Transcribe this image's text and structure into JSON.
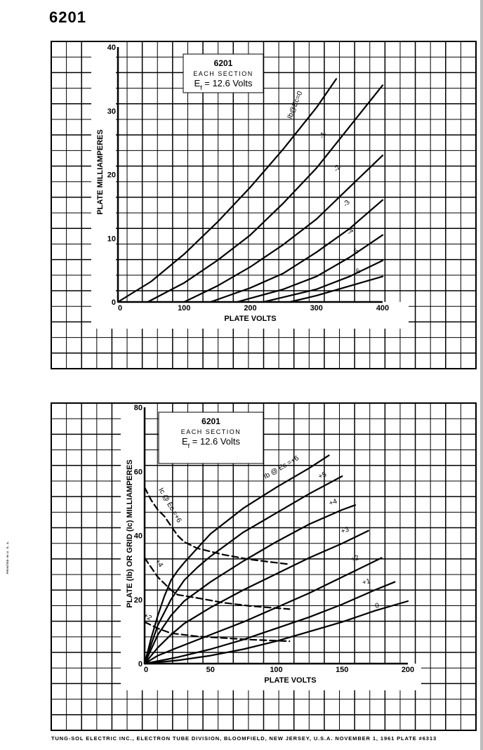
{
  "page_title": "6201",
  "side_note": "PRINTED IN U. S. A.",
  "footer": "TUNG-SOL ELECTRIC INC.,   ELECTRON TUBE DIVISION,   BLOOMFIELD, NEW JERSEY, U.S.A. NOVEMBER 1, 1961  PLATE #6313",
  "chart_data": [
    {
      "type": "line",
      "title": "6201",
      "subtitle": "EACH SECTION",
      "note": "Ef = 12.6 Volts",
      "xlabel": "PLATE VOLTS",
      "ylabel": "PLATE MILLIAMPERES",
      "xlim": [
        0,
        400
      ],
      "ylim": [
        0,
        40
      ],
      "x_ticks": [
        "0",
        "100",
        "200",
        "300",
        "400"
      ],
      "y_ticks": [
        "0",
        "10",
        "20",
        "30",
        "40"
      ],
      "series": [
        {
          "name": "Ib@Ec=0",
          "points": [
            [
              0,
              0
            ],
            [
              50,
              3.2
            ],
            [
              100,
              7.5
            ],
            [
              150,
              12.5
            ],
            [
              200,
              18
            ],
            [
              250,
              24
            ],
            [
              300,
              30.5
            ],
            [
              330,
              35
            ]
          ]
        },
        {
          "name": "-1",
          "points": [
            [
              45,
              0
            ],
            [
              100,
              3
            ],
            [
              150,
              6.5
            ],
            [
              200,
              10.5
            ],
            [
              250,
              15.5
            ],
            [
              300,
              21
            ],
            [
              350,
              27.5
            ],
            [
              400,
              34
            ]
          ]
        },
        {
          "name": "-2",
          "points": [
            [
              100,
              0
            ],
            [
              150,
              2.5
            ],
            [
              200,
              5.5
            ],
            [
              250,
              9
            ],
            [
              300,
              13
            ],
            [
              350,
              18
            ],
            [
              400,
              23
            ]
          ]
        },
        {
          "name": "-3",
          "points": [
            [
              140,
              0
            ],
            [
              200,
              2.2
            ],
            [
              250,
              4.5
            ],
            [
              300,
              7.8
            ],
            [
              350,
              11.5
            ],
            [
              400,
              16
            ]
          ]
        },
        {
          "name": "-4",
          "points": [
            [
              180,
              0
            ],
            [
              250,
              2
            ],
            [
              300,
              4
            ],
            [
              350,
              7
            ],
            [
              400,
              10.5
            ]
          ]
        },
        {
          "name": "-5",
          "points": [
            [
              220,
              0
            ],
            [
              300,
              2
            ],
            [
              350,
              4
            ],
            [
              400,
              6.5
            ]
          ]
        },
        {
          "name": "-6",
          "points": [
            [
              260,
              0
            ],
            [
              300,
              1
            ],
            [
              350,
              2.5
            ],
            [
              400,
              4
            ]
          ]
        }
      ]
    },
    {
      "type": "line",
      "title": "6201",
      "subtitle": "EACH SECTION",
      "note": "Ef = 12.6 Volts",
      "xlabel": "PLATE VOLTS",
      "ylabel": "PLATE (Ib) OR GRID (Ic) MILLIAMPERES",
      "xlim": [
        0,
        200
      ],
      "ylim": [
        0,
        80
      ],
      "x_ticks": [
        "0",
        "50",
        "100",
        "150",
        "200"
      ],
      "y_ticks": [
        "0",
        "20",
        "40",
        "60",
        "80"
      ],
      "series": [
        {
          "name": "Ib @ Ec =+6",
          "points": [
            [
              0,
              0
            ],
            [
              5,
              8
            ],
            [
              10,
              15
            ],
            [
              15,
              21
            ],
            [
              20,
              26
            ],
            [
              25,
              29
            ],
            [
              30,
              31.5
            ],
            [
              40,
              36
            ],
            [
              50,
              40.5
            ],
            [
              75,
              48.5
            ],
            [
              100,
              55
            ],
            [
              125,
              61
            ],
            [
              140,
              65
            ]
          ]
        },
        {
          "name": "+5",
          "points": [
            [
              0,
              0
            ],
            [
              5,
              6
            ],
            [
              10,
              12
            ],
            [
              20,
              20
            ],
            [
              30,
              26
            ],
            [
              40,
              30
            ],
            [
              50,
              33.5
            ],
            [
              75,
              41
            ],
            [
              100,
              47
            ],
            [
              125,
              53
            ],
            [
              150,
              58.5
            ]
          ]
        },
        {
          "name": "+4",
          "points": [
            [
              0,
              0
            ],
            [
              10,
              9
            ],
            [
              20,
              15
            ],
            [
              30,
              19.5
            ],
            [
              50,
              25.5
            ],
            [
              75,
              32
            ],
            [
              100,
              38
            ],
            [
              125,
              43.5
            ],
            [
              150,
              48
            ],
            [
              160,
              49.5
            ]
          ]
        },
        {
          "name": "+3",
          "points": [
            [
              0,
              0
            ],
            [
              10,
              5
            ],
            [
              20,
              9
            ],
            [
              30,
              12.5
            ],
            [
              50,
              17.5
            ],
            [
              75,
              23
            ],
            [
              100,
              28
            ],
            [
              125,
              33
            ],
            [
              150,
              37.5
            ],
            [
              170,
              41.5
            ]
          ]
        },
        {
          "name": "+2",
          "points": [
            [
              0,
              0
            ],
            [
              10,
              2.5
            ],
            [
              25,
              5
            ],
            [
              50,
              9
            ],
            [
              75,
              13
            ],
            [
              100,
              17.5
            ],
            [
              125,
              22
            ],
            [
              150,
              27
            ],
            [
              180,
              33
            ]
          ]
        },
        {
          "name": "+1",
          "points": [
            [
              0,
              0
            ],
            [
              25,
              2
            ],
            [
              50,
              4.5
            ],
            [
              75,
              7.5
            ],
            [
              100,
              11
            ],
            [
              125,
              14.5
            ],
            [
              150,
              18.5
            ],
            [
              175,
              23
            ],
            [
              190,
              25.5
            ]
          ]
        },
        {
          "name": "0",
          "points": [
            [
              0,
              0
            ],
            [
              25,
              1
            ],
            [
              50,
              2.5
            ],
            [
              75,
              4.5
            ],
            [
              100,
              7
            ],
            [
              125,
              10
            ],
            [
              150,
              13
            ],
            [
              175,
              16.5
            ],
            [
              200,
              19.5
            ]
          ]
        },
        {
          "name": "Ic @ Ec =+6",
          "dashed": true,
          "points": [
            [
              0,
              55
            ],
            [
              5,
              51
            ],
            [
              10,
              48
            ],
            [
              15,
              46
            ],
            [
              20,
              43
            ],
            [
              25,
              40
            ],
            [
              30,
              38
            ],
            [
              40,
              36
            ],
            [
              60,
              34
            ],
            [
              80,
              32.5
            ],
            [
              110,
              31
            ]
          ]
        },
        {
          "name": "+4",
          "dashed": true,
          "points": [
            [
              0,
              33
            ],
            [
              5,
              30
            ],
            [
              10,
              27
            ],
            [
              15,
              25
            ],
            [
              20,
              23
            ],
            [
              25,
              21.5
            ],
            [
              40,
              20.5
            ],
            [
              60,
              19
            ],
            [
              80,
              18
            ],
            [
              110,
              17
            ]
          ]
        },
        {
          "name": "+2",
          "dashed": true,
          "points": [
            [
              0,
              13
            ],
            [
              10,
              11
            ],
            [
              20,
              9.5
            ],
            [
              40,
              8.5
            ],
            [
              60,
              8
            ],
            [
              80,
              7.5
            ],
            [
              110,
              7
            ]
          ]
        }
      ]
    }
  ]
}
